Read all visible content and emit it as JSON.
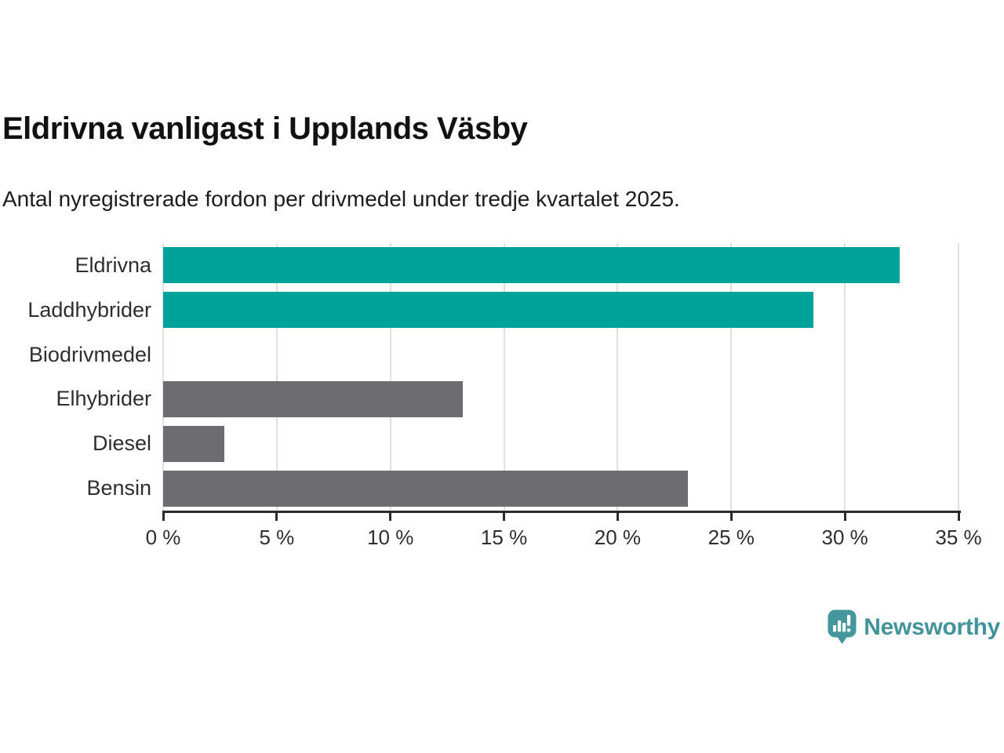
{
  "header": {
    "title": "Eldrivna vanligast i Upplands Väsby",
    "subtitle": "Antal nyregistrerade fordon per drivmedel under tredje kvartalet 2025."
  },
  "chart_data": {
    "type": "bar",
    "orientation": "horizontal",
    "title": "Eldrivna vanligast i Upplands Väsby",
    "subtitle": "Antal nyregistrerade fordon per drivmedel under tredje kvartalet 2025.",
    "categories": [
      "Eldrivna",
      "Laddhybrider",
      "Biodrivmedel",
      "Elhybrider",
      "Diesel",
      "Bensin"
    ],
    "values": [
      32.4,
      28.6,
      0,
      13.2,
      2.7,
      23.1
    ],
    "bar_colors": [
      "#00A29A",
      "#00A29A",
      "#6C6C71",
      "#6C6C71",
      "#6C6C71",
      "#6C6C71"
    ],
    "value_unit": "%",
    "xlabel": "",
    "ylabel": "",
    "xlim": [
      0,
      35
    ],
    "x_tick_values": [
      0,
      5,
      10,
      15,
      20,
      25,
      30,
      35
    ],
    "x_tick_labels": [
      "0 %",
      "5 %",
      "10 %",
      "15 %",
      "20 %",
      "25 %",
      "30 %",
      "35 %"
    ],
    "grid": true,
    "legend": false,
    "colors": {
      "highlight": "#00A29A",
      "default": "#6C6C71",
      "gridline": "#E0E0E0",
      "axis": "#2B2B2B"
    }
  },
  "footer": {
    "brand": "Newsworthy",
    "brand_color": "#43939B",
    "logo_icon": "newsworthy-speech-bubble-barchart-icon"
  }
}
